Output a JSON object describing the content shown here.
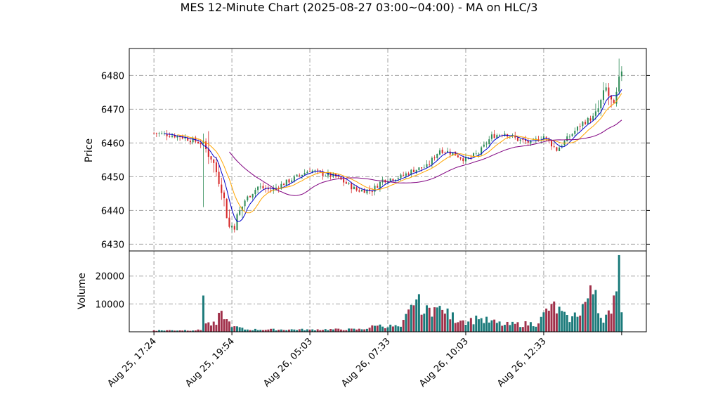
{
  "chart_data": {
    "type": "candlestick",
    "title": "MES 12-Minute Chart (2025-08-27 03:00~04:00) - MA on HLC/3",
    "price_axis": {
      "label": "Price",
      "ylim": [
        6428,
        6488
      ],
      "ticks": [
        6430,
        6440,
        6450,
        6460,
        6470,
        6480
      ]
    },
    "volume_axis": {
      "label": "Volume",
      "ylim": [
        0,
        29000
      ],
      "ticks": [
        10000,
        20000
      ]
    },
    "x_ticks": [
      {
        "index": 0,
        "label": "Aug 25, 17:24"
      },
      {
        "index": 30,
        "label": "Aug 25, 19:54"
      },
      {
        "index": 60,
        "label": "Aug 26, 05:03"
      },
      {
        "index": 90,
        "label": "Aug 26, 07:33"
      },
      {
        "index": 120,
        "label": "Aug 26, 10:03"
      },
      {
        "index": 150,
        "label": "Aug 26, 12:33"
      }
    ],
    "bar_count": 181,
    "x_range": [
      -9.5,
      189.5
    ],
    "grid": true,
    "colors": {
      "up": "#2e8b57",
      "down": "#d62728",
      "ma_fast": "#0000cc",
      "ma_mid": "#ffa500",
      "ma_slow": "#800080"
    },
    "close_anchors": [
      [
        0,
        6463
      ],
      [
        10,
        6462
      ],
      [
        18,
        6460
      ],
      [
        22,
        6456
      ],
      [
        26,
        6447
      ],
      [
        29,
        6435
      ],
      [
        31,
        6436
      ],
      [
        35,
        6443
      ],
      [
        40,
        6447
      ],
      [
        45,
        6446
      ],
      [
        50,
        6448
      ],
      [
        55,
        6450
      ],
      [
        60,
        6452
      ],
      [
        64,
        6451
      ],
      [
        70,
        6450
      ],
      [
        78,
        6446
      ],
      [
        84,
        6446
      ],
      [
        88,
        6449
      ],
      [
        95,
        6450
      ],
      [
        100,
        6452
      ],
      [
        105,
        6453
      ],
      [
        110,
        6458
      ],
      [
        115,
        6457
      ],
      [
        120,
        6455
      ],
      [
        125,
        6457
      ],
      [
        130,
        6462
      ],
      [
        135,
        6463
      ],
      [
        140,
        6461
      ],
      [
        145,
        6460
      ],
      [
        150,
        6462
      ],
      [
        155,
        6458
      ],
      [
        160,
        6462
      ],
      [
        165,
        6466
      ],
      [
        170,
        6468
      ],
      [
        174,
        6476
      ],
      [
        177,
        6470
      ],
      [
        180,
        6482
      ]
    ],
    "volume_anchors": [
      [
        0,
        500
      ],
      [
        18,
        600
      ],
      [
        19,
        13000
      ],
      [
        20,
        3000
      ],
      [
        24,
        2500
      ],
      [
        25,
        6800
      ],
      [
        27,
        4500
      ],
      [
        31,
        2000
      ],
      [
        35,
        800
      ],
      [
        60,
        800
      ],
      [
        80,
        900
      ],
      [
        86,
        2200
      ],
      [
        95,
        1800
      ],
      [
        100,
        9500
      ],
      [
        102,
        13500
      ],
      [
        104,
        6500
      ],
      [
        108,
        8800
      ],
      [
        112,
        6500
      ],
      [
        118,
        4000
      ],
      [
        125,
        4500
      ],
      [
        135,
        2500
      ],
      [
        148,
        3000
      ],
      [
        153,
        10000
      ],
      [
        160,
        3500
      ],
      [
        170,
        15000
      ],
      [
        172,
        5000
      ],
      [
        176,
        6500
      ],
      [
        178,
        14500
      ],
      [
        179,
        27500
      ],
      [
        180,
        7000
      ]
    ]
  }
}
